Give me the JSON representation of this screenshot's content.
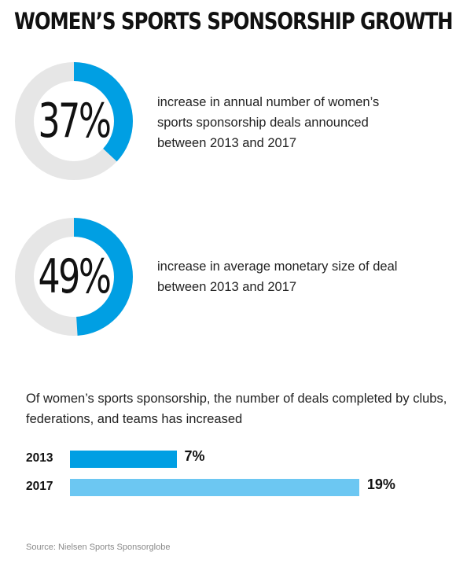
{
  "title": "WOMEN’S SPORTS SPONSORSHIP GROWTH",
  "stats": [
    {
      "value_label": "37%",
      "fraction": 0.37,
      "description": "increase in annual number of women’s sports sponsorship deals announced between 2013 and 2017"
    },
    {
      "value_label": "49%",
      "fraction": 0.49,
      "description": "increase in average monetary size of deal between 2013 and 2017"
    }
  ],
  "intro": "Of women’s sports sponsorship, the number of deals completed by clubs, federations, and teams has increased",
  "source": "Source: Nielsen Sports Sponsorglobe",
  "colors": {
    "ring_fill": "#009fe3",
    "ring_track": "#e6e6e6",
    "bar_2013": "#009fe3",
    "bar_2017": "#6cc7f2"
  },
  "chart_data": [
    {
      "type": "pie",
      "title": "",
      "categories": [
        "37%"
      ],
      "values": [
        37
      ],
      "max": 100
    },
    {
      "type": "pie",
      "title": "",
      "categories": [
        "49%"
      ],
      "values": [
        49
      ],
      "max": 100
    },
    {
      "type": "bar",
      "orientation": "horizontal",
      "title": "",
      "categories": [
        "2013",
        "2017"
      ],
      "values": [
        7,
        19
      ],
      "value_labels": [
        "7%",
        "19%"
      ],
      "xlim": [
        0,
        25
      ],
      "grid": false
    }
  ]
}
